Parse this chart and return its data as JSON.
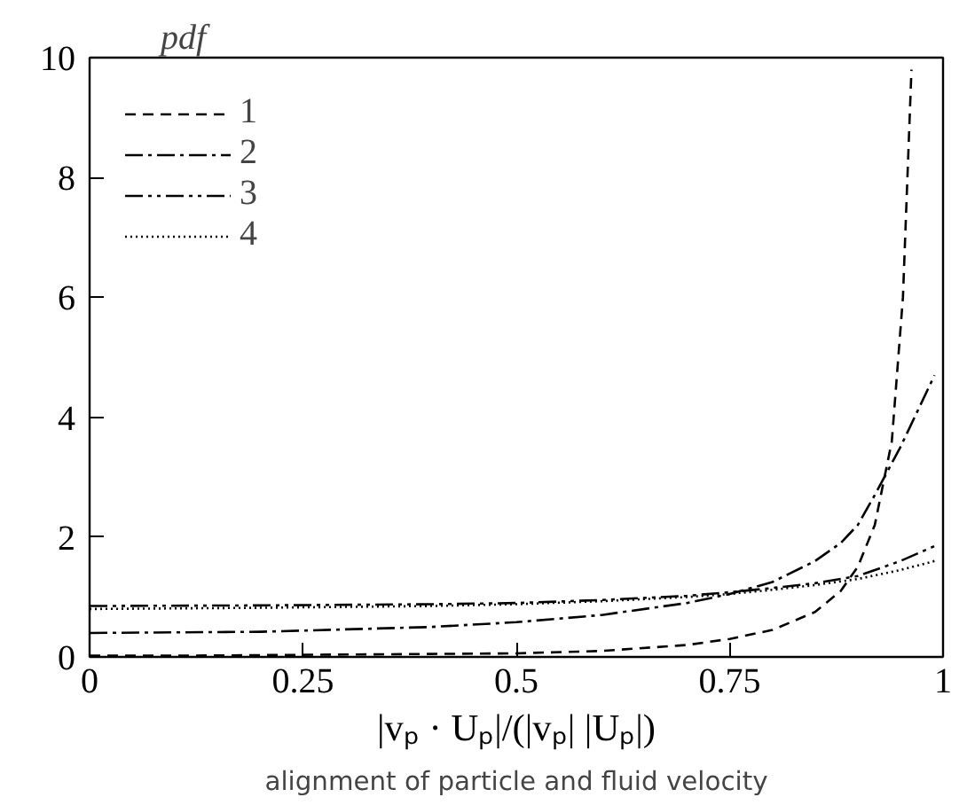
{
  "chart_data": {
    "type": "line",
    "ylabel": "pdf",
    "xlabel": "|vₚ · Uₚ|/(|vₚ| |Uₚ|)",
    "annotations": [
      "alignment of particle and fluid velocity"
    ],
    "xlim": [
      0,
      1
    ],
    "ylim": [
      0,
      10
    ],
    "xticks": [
      0,
      0.25,
      0.5,
      0.75,
      1
    ],
    "yticks": [
      0,
      2,
      4,
      6,
      8,
      10
    ],
    "grid": false,
    "legend": "top left",
    "marker": "none",
    "x": [
      0,
      0.1,
      0.2,
      0.3,
      0.4,
      0.5,
      0.6,
      0.7,
      0.75,
      0.8,
      0.85,
      0.88,
      0.9,
      0.92,
      0.94,
      0.953,
      0.963
    ],
    "series": [
      {
        "name": "1",
        "color": "#000000",
        "line_style": "dashed",
        "values": [
          0.02,
          0.02,
          0.03,
          0.04,
          0.05,
          0.06,
          0.1,
          0.2,
          0.3,
          0.45,
          0.75,
          1.1,
          1.5,
          2.2,
          3.6,
          6,
          9.8
        ]
      },
      {
        "name": "2",
        "color": "#000000",
        "line_style": "dashdot",
        "x": [
          0,
          0.2,
          0.4,
          0.5,
          0.6,
          0.7,
          0.75,
          0.8,
          0.85,
          0.88,
          0.9,
          0.92,
          0.95,
          0.97,
          0.99
        ],
        "values": [
          0.4,
          0.42,
          0.5,
          0.58,
          0.7,
          0.9,
          1.05,
          1.25,
          1.6,
          1.9,
          2.2,
          2.7,
          3.5,
          4.1,
          4.7
        ]
      },
      {
        "name": "3",
        "color": "#000000",
        "line_style": "dashdotdot",
        "x": [
          0,
          0.2,
          0.4,
          0.5,
          0.6,
          0.7,
          0.75,
          0.8,
          0.85,
          0.9,
          0.95,
          0.99
        ],
        "values": [
          0.85,
          0.86,
          0.88,
          0.9,
          0.95,
          1.02,
          1.08,
          1.15,
          1.23,
          1.35,
          1.6,
          1.85
        ]
      },
      {
        "name": "4",
        "color": "#000000",
        "line_style": "dotted",
        "x": [
          0,
          0.2,
          0.4,
          0.5,
          0.6,
          0.7,
          0.75,
          0.8,
          0.85,
          0.9,
          0.95,
          0.99
        ],
        "values": [
          0.8,
          0.82,
          0.85,
          0.88,
          0.93,
          1.0,
          1.05,
          1.12,
          1.2,
          1.3,
          1.45,
          1.6
        ]
      }
    ]
  }
}
